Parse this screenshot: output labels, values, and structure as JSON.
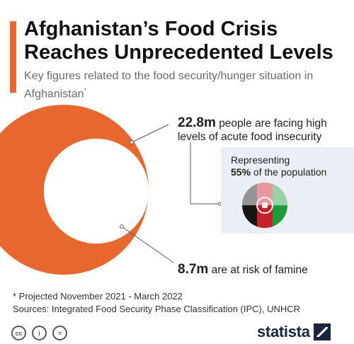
{
  "header": {
    "title": "Afghanistan’s Food Crisis Reaches Unprecedented Levels",
    "subtitle": "Key figures related to the food security/hunger situation in Afghanistan",
    "subtitle_marker": "*"
  },
  "chart_data": {
    "type": "nested-circle",
    "items": [
      {
        "value": "22.8m",
        "text": "people are facing high levels of acute food insecurity",
        "num": 22.8,
        "role": "outer"
      },
      {
        "value": "8.7m",
        "text": "are at risk of famine",
        "num": 8.7,
        "role": "inner"
      }
    ],
    "share": {
      "lead": "Representing",
      "value": "55%",
      "tail": "of the population"
    }
  },
  "colors": {
    "accent": "#e8672f",
    "text": "#1f1f1f",
    "panel": "#eaeef5",
    "brand": "#1b2540"
  },
  "footer": {
    "note": "* Projected November 2021 - March 2022",
    "sources": "Sources: Integrated Food Security Phase Classification (IPC), UNHCR",
    "license_icons": [
      "cc-icon",
      "by-icon",
      "nd-icon"
    ],
    "brand": "statista"
  }
}
